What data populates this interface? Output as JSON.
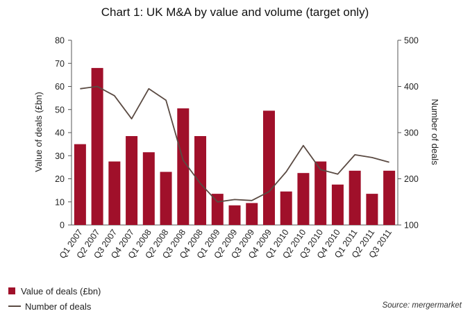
{
  "colors": {
    "bar": "#a0102a",
    "line": "#5a4a42",
    "axis": "#555555"
  },
  "chart_data": {
    "type": "bar",
    "title": "Chart 1: UK M&A by value and volume (target only)",
    "categories": [
      "Q1 2007",
      "Q2 2007",
      "Q3 2007",
      "Q4 2007",
      "Q1 2008",
      "Q2 2008",
      "Q3 2008",
      "Q4 2008",
      "Q1 2009",
      "Q2 2009",
      "Q3 2009",
      "Q4 2009",
      "Q1 2010",
      "Q2 2010",
      "Q3 2010",
      "Q4 2010",
      "Q1 2011",
      "Q2 2011",
      "Q3 2011"
    ],
    "series": [
      {
        "name": "Value of deals (£bn)",
        "type": "bar",
        "axis": "left",
        "values": [
          35,
          68,
          27.5,
          38.5,
          31.5,
          23,
          50.5,
          38.5,
          13.5,
          8.5,
          9.5,
          49.5,
          14.5,
          22.5,
          27.5,
          17.5,
          23.5,
          13.5,
          23.5
        ]
      },
      {
        "name": "Number of deals",
        "type": "line",
        "axis": "right",
        "values": [
          395,
          400,
          380,
          330,
          395,
          370,
          240,
          190,
          150,
          155,
          153,
          172,
          215,
          272,
          220,
          210,
          252,
          246,
          236
        ]
      }
    ],
    "ylabel": "Value of deals (£bn)",
    "ylim": [
      0,
      80
    ],
    "yticks": [
      0,
      10,
      20,
      30,
      40,
      50,
      60,
      70,
      80
    ],
    "y2label": "Number of deals",
    "y2lim": [
      100,
      500
    ],
    "y2ticks": [
      100,
      200,
      300,
      400,
      500
    ],
    "legend_position": "bottom-left",
    "grid": false
  },
  "legend": {
    "bar_label": "Value of deals (£bn)",
    "line_label": "Number of deals"
  },
  "source": "Source: mergermarket"
}
